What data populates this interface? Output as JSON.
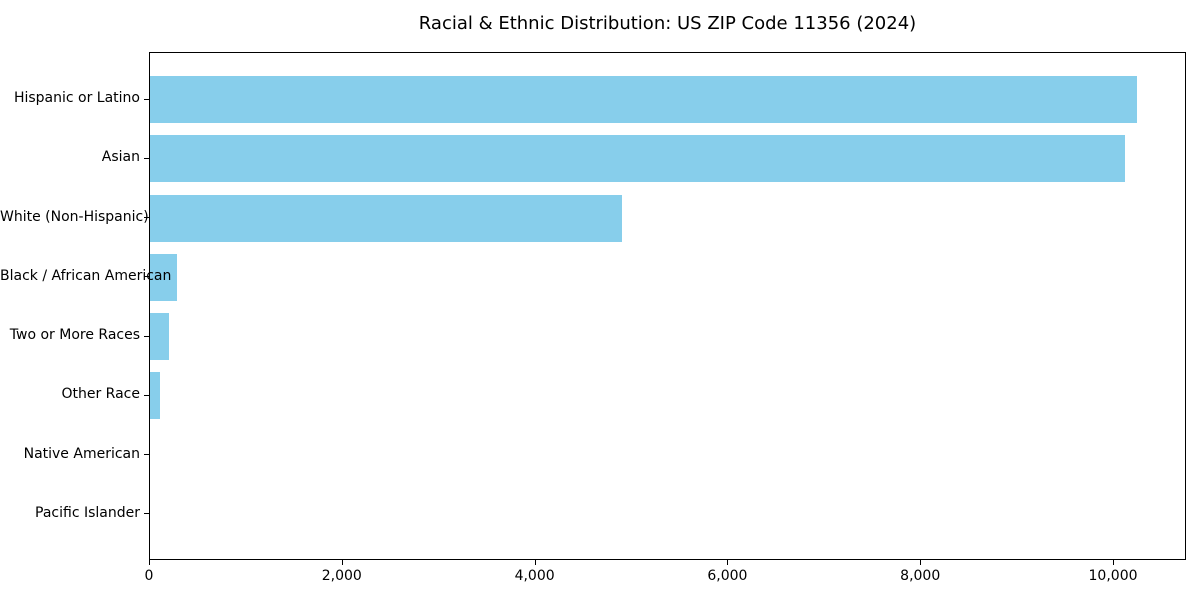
{
  "chart_data": {
    "type": "bar",
    "orientation": "horizontal",
    "title": "Racial & Ethnic Distribution: US ZIP Code 11356 (2024)",
    "categories": [
      "Hispanic or Latino",
      "Asian",
      "White (Non-Hispanic)",
      "Black / African American",
      "Two or More Races",
      "Other Race",
      "Native American",
      "Pacific Islander"
    ],
    "values": [
      10240,
      10110,
      4900,
      280,
      200,
      105,
      0,
      0
    ],
    "bar_color": "#87CEEB",
    "axis_color": "#000000",
    "xlabel": "",
    "ylabel": "",
    "xlim": [
      0,
      10757
    ],
    "xticks": [
      0,
      2000,
      4000,
      6000,
      8000,
      10000
    ],
    "xtick_labels": [
      "0",
      "2,000",
      "4,000",
      "6,000",
      "8,000",
      "10,000"
    ],
    "grid": false,
    "legend": null
  }
}
